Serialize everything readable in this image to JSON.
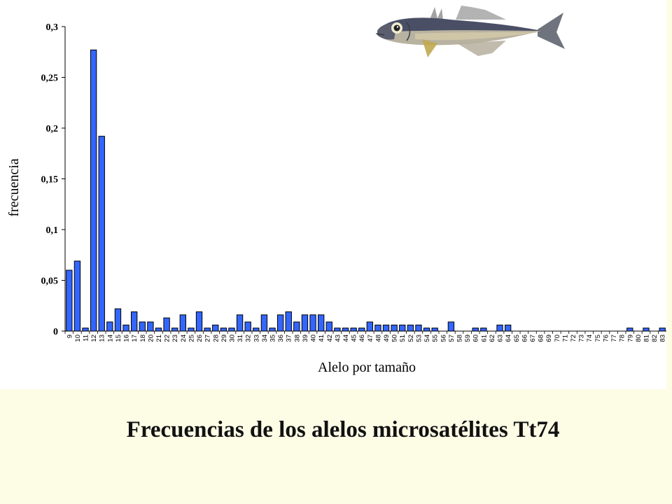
{
  "slide": {
    "title": "Frecuencias de los alelos microsatélites Tt74"
  },
  "chart_data": {
    "type": "bar",
    "title": "",
    "xlabel": "Alelo por tamaño",
    "ylabel": "frecuencia",
    "ylim": [
      0,
      0.3
    ],
    "yticks": [
      "0",
      "0,05",
      "0,1",
      "0,15",
      "0,2",
      "0,25",
      "0,3"
    ],
    "grid": false,
    "bar_color": "#3366ff",
    "categories": [
      "9",
      "10",
      "11",
      "12",
      "13",
      "14",
      "15",
      "16",
      "17",
      "18",
      "20",
      "21",
      "22",
      "23",
      "24",
      "25",
      "26",
      "27",
      "28",
      "29",
      "30",
      "31",
      "32",
      "33",
      "34",
      "35",
      "36",
      "37",
      "38",
      "39",
      "40",
      "41",
      "42",
      "43",
      "44",
      "45",
      "46",
      "47",
      "48",
      "49",
      "50",
      "51",
      "52",
      "53",
      "54",
      "55",
      "56",
      "57",
      "58",
      "59",
      "60",
      "61",
      "62",
      "63",
      "64",
      "65",
      "66",
      "67",
      "68",
      "69",
      "70",
      "71",
      "72",
      "73",
      "74",
      "75",
      "76",
      "77",
      "78",
      "79",
      "80",
      "81",
      "82",
      "83"
    ],
    "values": [
      0.06,
      0.069,
      0.003,
      0.277,
      0.192,
      0.009,
      0.022,
      0.006,
      0.019,
      0.009,
      0.009,
      0.003,
      0.013,
      0.003,
      0.016,
      0.003,
      0.019,
      0.003,
      0.006,
      0.003,
      0.003,
      0.016,
      0.009,
      0.003,
      0.016,
      0.003,
      0.016,
      0.019,
      0.009,
      0.016,
      0.016,
      0.016,
      0.009,
      0.003,
      0.003,
      0.003,
      0.003,
      0.009,
      0.006,
      0.006,
      0.006,
      0.006,
      0.006,
      0.006,
      0.003,
      0.003,
      0,
      0.009,
      0,
      0,
      0.003,
      0.003,
      0,
      0.006,
      0.006,
      0,
      0,
      0,
      0,
      0,
      0,
      0,
      0,
      0,
      0,
      0,
      0,
      0,
      0,
      0.003,
      0,
      0.003,
      0,
      0.003
    ]
  },
  "fish_icon": "horse-mackerel-fish-icon"
}
